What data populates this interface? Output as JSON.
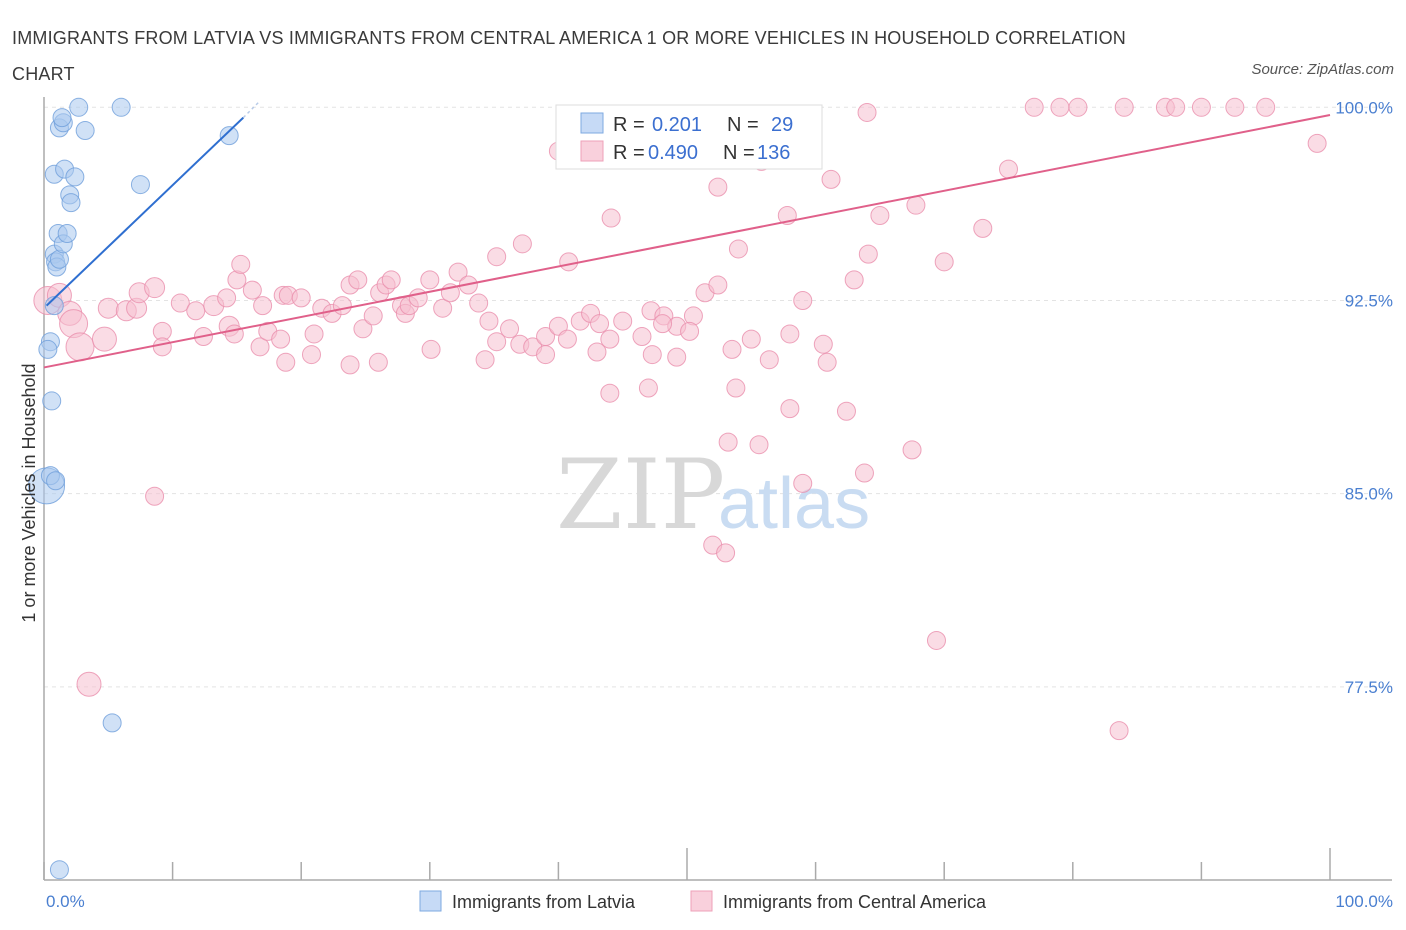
{
  "chart_data": {
    "type": "scatter",
    "title": "IMMIGRANTS FROM LATVIA VS IMMIGRANTS FROM CENTRAL AMERICA 1 OR MORE VEHICLES IN HOUSEHOLD CORRELATION CHART",
    "source": "Source: ZipAtlas.com",
    "xlabel": "",
    "ylabel": "1 or more Vehicles in Household",
    "xlim": [
      0,
      100
    ],
    "ylim": [
      70.0,
      100.4
    ],
    "x_tick_labels": [
      {
        "value": 0,
        "label": "0.0%"
      },
      {
        "value": 100,
        "label": "100.0%"
      }
    ],
    "y_ticks": [
      {
        "value": 77.5,
        "label": "77.5%"
      },
      {
        "value": 85.0,
        "label": "85.0%"
      },
      {
        "value": 92.5,
        "label": "92.5%"
      },
      {
        "value": 100.0,
        "label": "100.0%"
      }
    ],
    "watermark": {
      "part1": "ZIP",
      "part2": "atlas"
    },
    "stats": [
      {
        "r_label": "R =",
        "r_value": "0.201",
        "n_label": "N =",
        "n_value": "29"
      },
      {
        "r_label": "R =",
        "r_value": "0.490",
        "n_label": "N =",
        "n_value": "136"
      }
    ],
    "series": [
      {
        "name": "Immigrants from Latvia",
        "color": "#a9c8ef",
        "stroke": "#6f9fdb",
        "line_color": "#2f6fd0",
        "trend": {
          "x0": 0.2,
          "y0": 92.3,
          "x1": 15.5,
          "y1": 99.6
        },
        "points": [
          [
            0.2,
            85.3,
            18
          ],
          [
            0.5,
            90.9,
            9
          ],
          [
            0.3,
            90.6,
            9
          ],
          [
            0.6,
            88.6,
            9
          ],
          [
            0.8,
            94.3,
            9
          ],
          [
            0.9,
            94.0,
            9
          ],
          [
            1.0,
            93.8,
            9
          ],
          [
            0.8,
            92.3,
            9
          ],
          [
            1.1,
            95.1,
            9
          ],
          [
            1.2,
            94.1,
            9
          ],
          [
            1.5,
            94.7,
            9
          ],
          [
            1.8,
            95.1,
            9
          ],
          [
            0.8,
            97.4,
            9
          ],
          [
            1.6,
            97.6,
            9
          ],
          [
            2.4,
            97.3,
            9
          ],
          [
            2.0,
            96.6,
            9
          ],
          [
            2.1,
            96.3,
            9
          ],
          [
            1.2,
            99.2,
            9
          ],
          [
            1.5,
            99.4,
            9
          ],
          [
            1.4,
            99.6,
            9
          ],
          [
            2.7,
            100.0,
            9
          ],
          [
            6.0,
            100.0,
            9
          ],
          [
            3.2,
            99.1,
            9
          ],
          [
            7.5,
            97.0,
            9
          ],
          [
            14.4,
            98.9,
            9
          ],
          [
            0.5,
            85.7,
            9
          ],
          [
            0.9,
            85.5,
            9
          ],
          [
            5.3,
            76.1,
            9
          ],
          [
            1.2,
            70.4,
            9
          ]
        ]
      },
      {
        "name": "Immigrants from Central America",
        "color": "#f6bfcf",
        "stroke": "#ea8fac",
        "line_color": "#e0608a",
        "trend": {
          "x0": 0,
          "y0": 89.9,
          "x1": 100,
          "y1": 99.7
        },
        "points": [
          [
            0.3,
            92.5,
            14
          ],
          [
            1.2,
            92.7,
            12
          ],
          [
            2.0,
            92.0,
            12
          ],
          [
            2.3,
            91.6,
            14
          ],
          [
            2.8,
            90.7,
            14
          ],
          [
            4.7,
            91.0,
            12
          ],
          [
            5.0,
            92.2,
            10
          ],
          [
            6.4,
            92.1,
            10
          ],
          [
            7.2,
            92.2,
            10
          ],
          [
            7.4,
            92.8,
            10
          ],
          [
            9.2,
            91.3,
            9
          ],
          [
            8.6,
            93.0,
            10
          ],
          [
            10.6,
            92.4,
            9
          ],
          [
            11.8,
            92.1,
            9
          ],
          [
            12.4,
            91.1,
            9
          ],
          [
            13.2,
            92.3,
            10
          ],
          [
            14.4,
            91.5,
            10
          ],
          [
            14.8,
            91.2,
            9
          ],
          [
            15.0,
            93.3,
            9
          ],
          [
            15.3,
            93.9,
            9
          ],
          [
            14.2,
            92.6,
            9
          ],
          [
            16.2,
            92.9,
            9
          ],
          [
            17.0,
            92.3,
            9
          ],
          [
            16.8,
            90.7,
            9
          ],
          [
            17.4,
            91.3,
            9
          ],
          [
            18.4,
            91.0,
            9
          ],
          [
            18.6,
            92.7,
            9
          ],
          [
            19.0,
            92.7,
            9
          ],
          [
            20.0,
            92.6,
            9
          ],
          [
            21.0,
            91.2,
            9
          ],
          [
            21.6,
            92.2,
            9
          ],
          [
            22.4,
            92.0,
            9
          ],
          [
            23.2,
            92.3,
            9
          ],
          [
            23.8,
            93.1,
            9
          ],
          [
            24.4,
            93.3,
            9
          ],
          [
            24.8,
            91.4,
            9
          ],
          [
            25.6,
            91.9,
            9
          ],
          [
            26.1,
            92.8,
            9
          ],
          [
            26.6,
            93.1,
            9
          ],
          [
            27.0,
            93.3,
            9
          ],
          [
            27.8,
            92.3,
            9
          ],
          [
            28.1,
            92.0,
            9
          ],
          [
            28.4,
            92.3,
            9
          ],
          [
            29.1,
            92.6,
            9
          ],
          [
            30.0,
            93.3,
            9
          ],
          [
            31.0,
            92.2,
            9
          ],
          [
            31.6,
            92.8,
            9
          ],
          [
            32.2,
            93.6,
            9
          ],
          [
            33.0,
            93.1,
            9
          ],
          [
            33.8,
            92.4,
            9
          ],
          [
            34.6,
            91.7,
            9
          ],
          [
            35.2,
            90.9,
            9
          ],
          [
            36.2,
            91.4,
            9
          ],
          [
            37.0,
            90.8,
            9
          ],
          [
            38.0,
            90.7,
            9
          ],
          [
            39.0,
            91.1,
            9
          ],
          [
            40.0,
            91.5,
            9
          ],
          [
            40.7,
            91.0,
            9
          ],
          [
            41.7,
            91.7,
            9
          ],
          [
            42.5,
            92.0,
            9
          ],
          [
            43.2,
            91.6,
            9
          ],
          [
            44.0,
            91.0,
            9
          ],
          [
            45.0,
            91.7,
            9
          ],
          [
            46.5,
            91.1,
            9
          ],
          [
            47.2,
            92.1,
            9
          ],
          [
            48.2,
            91.9,
            9
          ],
          [
            49.2,
            91.5,
            9
          ],
          [
            50.5,
            91.9,
            9
          ],
          [
            51.4,
            92.8,
            9
          ],
          [
            52.4,
            93.1,
            9
          ],
          [
            9.2,
            90.7,
            9
          ],
          [
            18.8,
            90.1,
            9
          ],
          [
            20.8,
            90.4,
            9
          ],
          [
            23.8,
            90.0,
            9
          ],
          [
            26.0,
            90.1,
            9
          ],
          [
            30.1,
            90.6,
            9
          ],
          [
            34.3,
            90.2,
            9
          ],
          [
            39.0,
            90.4,
            9
          ],
          [
            43.0,
            90.5,
            9
          ],
          [
            47.3,
            90.4,
            9
          ],
          [
            50.2,
            91.3,
            9
          ],
          [
            53.5,
            90.6,
            9
          ],
          [
            55.0,
            91.0,
            9
          ],
          [
            56.4,
            90.2,
            9
          ],
          [
            58.0,
            91.2,
            9
          ],
          [
            59.0,
            92.5,
            9
          ],
          [
            60.6,
            90.8,
            9
          ],
          [
            63.0,
            93.3,
            9
          ],
          [
            64.1,
            94.3,
            9
          ],
          [
            65.0,
            95.8,
            9
          ],
          [
            67.8,
            96.2,
            9
          ],
          [
            70.0,
            94.0,
            9
          ],
          [
            73.0,
            95.3,
            9
          ],
          [
            75.0,
            97.6,
            9
          ],
          [
            35.2,
            94.2,
            9
          ],
          [
            37.2,
            94.7,
            9
          ],
          [
            40.8,
            94.0,
            9
          ],
          [
            44.1,
            95.7,
            9
          ],
          [
            48.1,
            91.6,
            9
          ],
          [
            52.4,
            96.9,
            9
          ],
          [
            54.0,
            94.5,
            9
          ],
          [
            55.8,
            97.9,
            9
          ],
          [
            57.8,
            95.8,
            9
          ],
          [
            61.2,
            97.2,
            9
          ],
          [
            44.0,
            88.9,
            9
          ],
          [
            47.0,
            89.1,
            9
          ],
          [
            49.2,
            90.3,
            9
          ],
          [
            53.8,
            89.1,
            9
          ],
          [
            58.0,
            88.3,
            9
          ],
          [
            60.9,
            90.1,
            9
          ],
          [
            62.4,
            88.2,
            9
          ],
          [
            53.2,
            87.0,
            9
          ],
          [
            55.6,
            86.9,
            9
          ],
          [
            59.0,
            85.4,
            9
          ],
          [
            63.8,
            85.8,
            9
          ],
          [
            67.5,
            86.7,
            9
          ],
          [
            52.0,
            83.0,
            9
          ],
          [
            53.0,
            82.7,
            9
          ],
          [
            87.2,
            100.0,
            9
          ],
          [
            90.0,
            100.0,
            9
          ],
          [
            88.0,
            100.0,
            9
          ],
          [
            92.6,
            100.0,
            9
          ],
          [
            95.0,
            100.0,
            9
          ],
          [
            99.0,
            98.6,
            9
          ],
          [
            79.0,
            100.0,
            9
          ],
          [
            84.0,
            100.0,
            9
          ],
          [
            77.0,
            100.0,
            9
          ],
          [
            80.4,
            100.0,
            9
          ],
          [
            69.4,
            79.3,
            9
          ],
          [
            83.6,
            75.8,
            9
          ],
          [
            8.6,
            84.9,
            9
          ],
          [
            3.5,
            77.6,
            12
          ],
          [
            40.0,
            98.3,
            9
          ],
          [
            64.0,
            99.8,
            9
          ]
        ]
      }
    ]
  },
  "legend": {
    "items": [
      {
        "label": "Immigrants from Latvia",
        "color": "#c6daf6",
        "stroke": "#7ea9e0"
      },
      {
        "label": "Immigrants from Central America",
        "color": "#f9d0dc",
        "stroke": "#eea0b8"
      }
    ]
  },
  "colors": {
    "axis": "#aaaaaa",
    "grid": "#e3e3e3",
    "tick_label": "#4a7fd0",
    "value_text": "#3b6fd0"
  }
}
